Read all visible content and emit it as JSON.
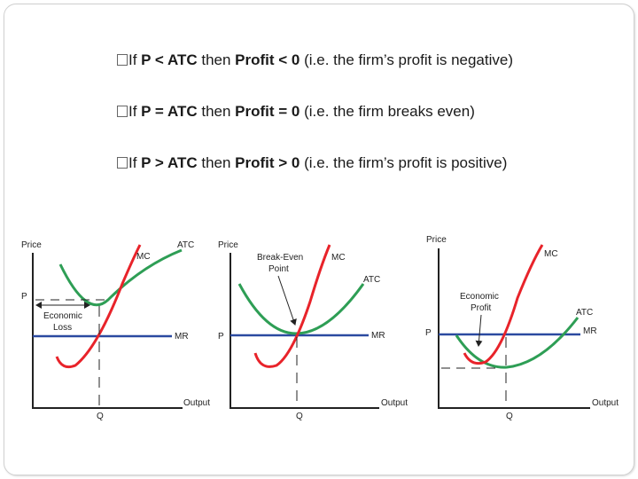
{
  "bullets": [
    {
      "prefix": "If ",
      "cond": "P < ATC",
      "then": " then ",
      "result": "Profit < 0",
      "note": " (i.e. the firm’s profit is negative)"
    },
    {
      "prefix": "If ",
      "cond": "P = ATC",
      "then": " then ",
      "result": "Profit = 0",
      "note": " (i.e. the firm breaks even)"
    },
    {
      "prefix": "If ",
      "cond": "P > ATC",
      "then": " then ",
      "result": "Profit > 0",
      "note": " (i.e. the firm’s profit is positive)"
    }
  ],
  "colors": {
    "mc": "#e8232a",
    "atc": "#2e9e55",
    "mr": "#2b4aa0",
    "axis": "#222222"
  },
  "graphs": [
    {
      "price_label": "Price",
      "output_label": "Output",
      "q_label": "Q",
      "p_label": "P",
      "mc_label": "MC",
      "atc_label": "ATC",
      "mr_label": "MR",
      "annotation_line1": "Economic",
      "annotation_line2": "Loss"
    },
    {
      "price_label": "Price",
      "output_label": "Output",
      "q_label": "Q",
      "p_label": "P",
      "mc_label": "MC",
      "atc_label": "ATC",
      "mr_label": "MR",
      "annotation_line1": "Break-Even",
      "annotation_line2": "Point"
    },
    {
      "price_label": "Price",
      "output_label": "Output",
      "q_label": "Q",
      "p_label": "P",
      "mc_label": "MC",
      "atc_label": "ATC",
      "mr_label": "MR",
      "annotation_line1": "Economic",
      "annotation_line2": "Profit"
    }
  ]
}
